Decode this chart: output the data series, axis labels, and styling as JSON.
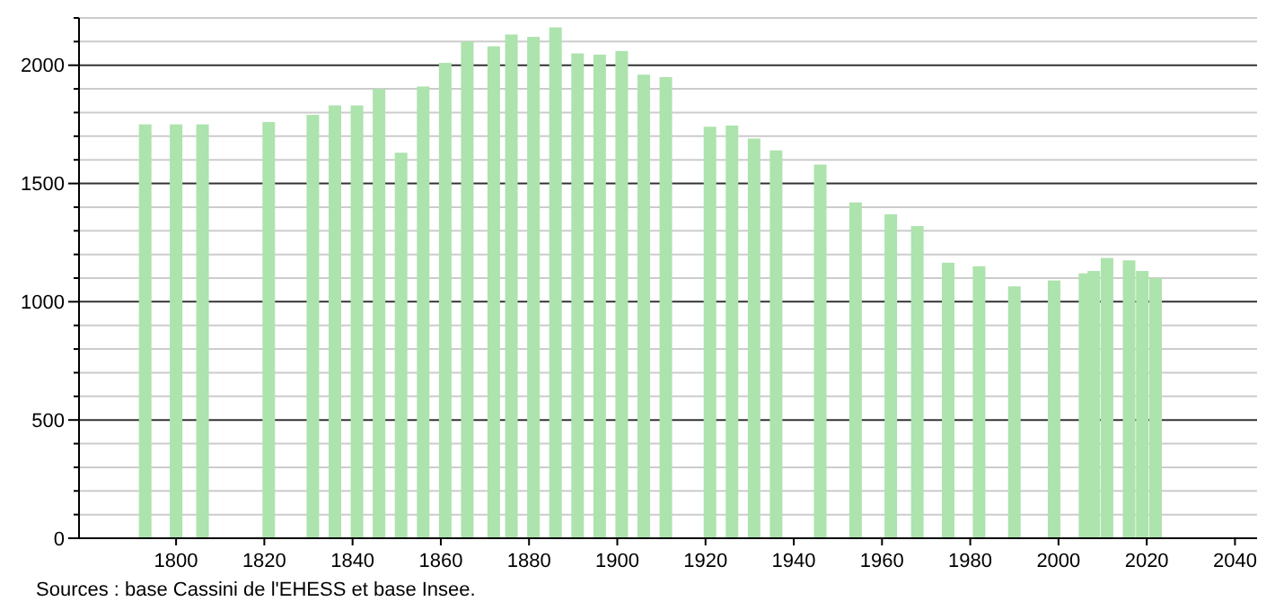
{
  "chart_data": {
    "type": "bar",
    "x": [
      1793,
      1800,
      1806,
      1821,
      1831,
      1836,
      1841,
      1846,
      1851,
      1856,
      1861,
      1866,
      1872,
      1876,
      1881,
      1886,
      1891,
      1896,
      1901,
      1906,
      1911,
      1921,
      1926,
      1931,
      1936,
      1946,
      1954,
      1962,
      1968,
      1975,
      1982,
      1990,
      1999,
      2006,
      2008,
      2011,
      2016,
      2019,
      2022
    ],
    "values": [
      1750,
      1750,
      1750,
      1760,
      1790,
      1830,
      1830,
      1900,
      1630,
      1910,
      2010,
      2100,
      2080,
      2130,
      2120,
      2160,
      2050,
      2045,
      2060,
      1960,
      1950,
      1740,
      1745,
      1690,
      1640,
      1580,
      1420,
      1370,
      1320,
      1165,
      1150,
      1065,
      1090,
      1120,
      1130,
      1185,
      1175,
      1130,
      1100
    ],
    "color": "#ade3ad",
    "xlim": [
      1778,
      2045
    ],
    "xticks": [
      1800,
      1820,
      1840,
      1860,
      1880,
      1900,
      1920,
      1940,
      1960,
      1980,
      2000,
      2020,
      2040
    ],
    "ylim": [
      0,
      2200
    ],
    "yticks": [
      0,
      {
        "value": 100,
        "label": null
      },
      {
        "value": 200,
        "label": null
      },
      {
        "value": 300,
        "label": null
      },
      {
        "value": 400,
        "label": null
      },
      500,
      {
        "value": 600,
        "label": null
      },
      {
        "value": 700,
        "label": null
      },
      {
        "value": 800,
        "label": null
      },
      {
        "value": 900,
        "label": null
      },
      1000,
      {
        "value": 1100,
        "label": null
      },
      {
        "value": 1200,
        "label": null
      },
      {
        "value": 1300,
        "label": null
      },
      {
        "value": 1400,
        "label": null
      },
      1500,
      {
        "value": 1600,
        "label": null
      },
      {
        "value": 1700,
        "label": null
      },
      {
        "value": 1800,
        "label": null
      },
      {
        "value": 1900,
        "label": null
      },
      2000,
      {
        "value": 2100,
        "label": null
      },
      {
        "value": 2200,
        "label": null
      }
    ],
    "grid": "y",
    "annotations": [
      "Sources : base Cassini de l'EHESS et base Insee."
    ]
  }
}
